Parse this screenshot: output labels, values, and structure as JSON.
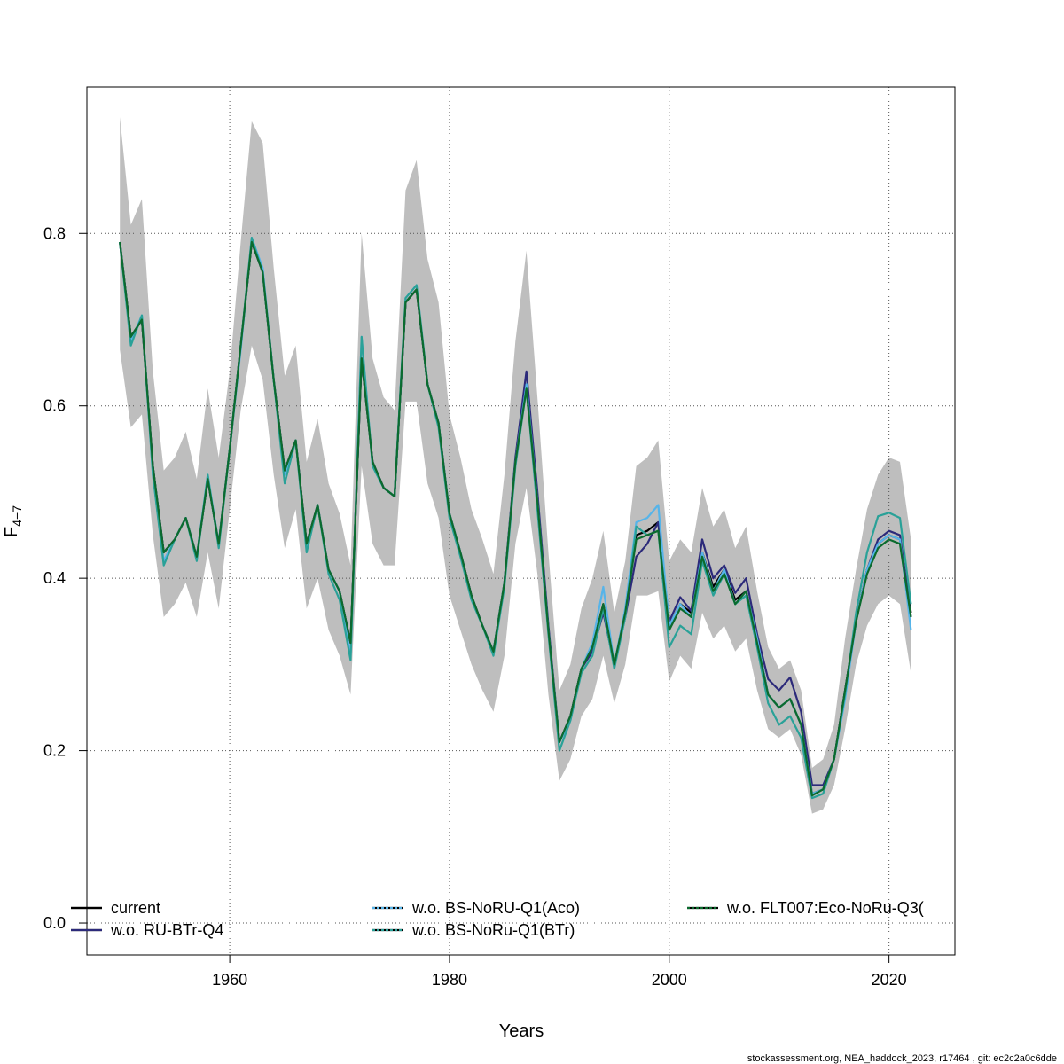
{
  "chart_data": {
    "type": "line",
    "xlabel": "Years",
    "ylabel_main": "F",
    "ylabel_sub": "4−7",
    "xlim": [
      1947,
      2026
    ],
    "ylim": [
      -0.037,
      0.97
    ],
    "x_ticks": [
      1960,
      1980,
      2000,
      2020
    ],
    "y_ticks": [
      0.0,
      0.2,
      0.4,
      0.6,
      0.8
    ],
    "y_tick_labels": [
      "0.0",
      "0.2",
      "0.4",
      "0.6",
      "0.8"
    ],
    "grid": true,
    "legend_position": "bottom",
    "caption": "stockassessment.org, NEA_haddock_2023, r17464 , git: ec2c2a0c6dde",
    "x": [
      1950,
      1951,
      1952,
      1953,
      1954,
      1955,
      1956,
      1957,
      1958,
      1959,
      1960,
      1961,
      1962,
      1963,
      1964,
      1965,
      1966,
      1967,
      1968,
      1969,
      1970,
      1971,
      1972,
      1973,
      1974,
      1975,
      1976,
      1977,
      1978,
      1979,
      1980,
      1981,
      1982,
      1983,
      1984,
      1985,
      1986,
      1987,
      1988,
      1989,
      1990,
      1991,
      1992,
      1993,
      1994,
      1995,
      1996,
      1997,
      1998,
      1999,
      2000,
      2001,
      2002,
      2003,
      2004,
      2005,
      2006,
      2007,
      2008,
      2009,
      2010,
      2011,
      2012,
      2013,
      2014,
      2015,
      2016,
      2017,
      2018,
      2019,
      2020,
      2021,
      2022
    ],
    "confidence_band": {
      "color": "#bebebe",
      "upper": [
        0.935,
        0.81,
        0.84,
        0.64,
        0.525,
        0.54,
        0.57,
        0.515,
        0.62,
        0.54,
        0.64,
        0.79,
        0.93,
        0.905,
        0.76,
        0.635,
        0.67,
        0.535,
        0.585,
        0.51,
        0.475,
        0.415,
        0.8,
        0.655,
        0.61,
        0.595,
        0.85,
        0.885,
        0.77,
        0.72,
        0.59,
        0.54,
        0.48,
        0.445,
        0.405,
        0.52,
        0.675,
        0.78,
        0.61,
        0.43,
        0.27,
        0.3,
        0.365,
        0.4,
        0.455,
        0.36,
        0.42,
        0.53,
        0.54,
        0.56,
        0.42,
        0.445,
        0.43,
        0.505,
        0.46,
        0.48,
        0.435,
        0.46,
        0.385,
        0.32,
        0.295,
        0.305,
        0.27,
        0.18,
        0.19,
        0.23,
        0.33,
        0.41,
        0.48,
        0.52,
        0.54,
        0.535,
        0.445
      ],
      "lower": [
        0.665,
        0.575,
        0.59,
        0.45,
        0.355,
        0.37,
        0.395,
        0.355,
        0.43,
        0.365,
        0.48,
        0.595,
        0.67,
        0.63,
        0.52,
        0.435,
        0.48,
        0.365,
        0.4,
        0.34,
        0.31,
        0.265,
        0.53,
        0.44,
        0.415,
        0.415,
        0.605,
        0.605,
        0.51,
        0.47,
        0.38,
        0.34,
        0.3,
        0.27,
        0.245,
        0.31,
        0.44,
        0.505,
        0.405,
        0.265,
        0.165,
        0.19,
        0.24,
        0.26,
        0.31,
        0.255,
        0.3,
        0.38,
        0.38,
        0.385,
        0.28,
        0.31,
        0.295,
        0.36,
        0.33,
        0.345,
        0.315,
        0.33,
        0.27,
        0.225,
        0.215,
        0.225,
        0.195,
        0.127,
        0.132,
        0.16,
        0.225,
        0.3,
        0.345,
        0.37,
        0.38,
        0.37,
        0.29
      ]
    },
    "legend": [
      {
        "label": "current",
        "color": "#000000",
        "dashed": false
      },
      {
        "label": "w.o. RU-BTr-Q4",
        "color": "#2c2a7a",
        "dashed": false
      },
      {
        "label": "w.o. BS-NoRU-Q1(Aco)",
        "color": "#56b4e9",
        "dashed": true
      },
      {
        "label": "w.o. BS-NoRu-Q1(BTr)",
        "color": "#2aa198",
        "dashed": true
      },
      {
        "label": "w.o. FLT007:Eco-NoRu-Q3(",
        "color": "#0b6b2e",
        "dashed": true
      }
    ],
    "series": [
      {
        "name": "current",
        "color": "#000000",
        "width": 2.2,
        "values": [
          0.79,
          0.68,
          0.7,
          0.53,
          0.43,
          0.445,
          0.47,
          0.425,
          0.515,
          0.44,
          0.55,
          0.67,
          0.79,
          0.755,
          0.63,
          0.525,
          0.56,
          0.44,
          0.485,
          0.41,
          0.385,
          0.325,
          0.655,
          0.535,
          0.505,
          0.495,
          0.72,
          0.735,
          0.625,
          0.58,
          0.475,
          0.43,
          0.38,
          0.345,
          0.315,
          0.395,
          0.535,
          0.625,
          0.49,
          0.34,
          0.21,
          0.24,
          0.295,
          0.32,
          0.37,
          0.3,
          0.36,
          0.45,
          0.455,
          0.465,
          0.345,
          0.37,
          0.36,
          0.43,
          0.39,
          0.41,
          0.375,
          0.385,
          0.33,
          0.265,
          0.25,
          0.26,
          0.23,
          0.15,
          0.155,
          0.19,
          0.27,
          0.35,
          0.41,
          0.44,
          0.45,
          0.445,
          0.36
        ]
      },
      {
        "name": "w.o. RU-BTr-Q4",
        "color": "#2c2a7a",
        "width": 2.2,
        "values": [
          0.79,
          0.68,
          0.7,
          0.53,
          0.43,
          0.445,
          0.47,
          0.425,
          0.515,
          0.44,
          0.55,
          0.67,
          0.79,
          0.755,
          0.63,
          0.525,
          0.56,
          0.44,
          0.485,
          0.41,
          0.385,
          0.325,
          0.655,
          0.535,
          0.505,
          0.495,
          0.72,
          0.735,
          0.625,
          0.58,
          0.475,
          0.43,
          0.38,
          0.345,
          0.315,
          0.395,
          0.54,
          0.64,
          0.5,
          0.345,
          0.21,
          0.24,
          0.295,
          0.315,
          0.36,
          0.3,
          0.355,
          0.425,
          0.44,
          0.465,
          0.35,
          0.378,
          0.362,
          0.445,
          0.4,
          0.415,
          0.383,
          0.4,
          0.335,
          0.283,
          0.27,
          0.285,
          0.245,
          0.16,
          0.16,
          0.19,
          0.27,
          0.35,
          0.41,
          0.445,
          0.455,
          0.45,
          0.355
        ]
      },
      {
        "name": "w.o. BS-NoRU-Q1(Aco)",
        "color": "#56b4e9",
        "width": 2.2,
        "values": [
          0.79,
          0.675,
          0.705,
          0.52,
          0.42,
          0.445,
          0.47,
          0.425,
          0.52,
          0.44,
          0.55,
          0.665,
          0.795,
          0.76,
          0.63,
          0.52,
          0.56,
          0.435,
          0.485,
          0.41,
          0.385,
          0.31,
          0.68,
          0.53,
          0.505,
          0.495,
          0.725,
          0.74,
          0.625,
          0.58,
          0.475,
          0.43,
          0.375,
          0.345,
          0.315,
          0.395,
          0.535,
          0.625,
          0.49,
          0.34,
          0.21,
          0.235,
          0.295,
          0.325,
          0.39,
          0.3,
          0.365,
          0.465,
          0.47,
          0.485,
          0.345,
          0.37,
          0.355,
          0.43,
          0.385,
          0.41,
          0.37,
          0.385,
          0.33,
          0.265,
          0.25,
          0.26,
          0.23,
          0.15,
          0.155,
          0.19,
          0.26,
          0.35,
          0.41,
          0.44,
          0.45,
          0.445,
          0.34
        ]
      },
      {
        "name": "w.o. BS-NoRu-Q1(BTr)",
        "color": "#2aa198",
        "width": 2.2,
        "values": [
          0.79,
          0.67,
          0.705,
          0.52,
          0.415,
          0.445,
          0.47,
          0.42,
          0.52,
          0.435,
          0.55,
          0.67,
          0.795,
          0.755,
          0.63,
          0.51,
          0.56,
          0.43,
          0.485,
          0.405,
          0.375,
          0.305,
          0.68,
          0.53,
          0.505,
          0.495,
          0.725,
          0.74,
          0.625,
          0.575,
          0.47,
          0.425,
          0.375,
          0.345,
          0.31,
          0.39,
          0.53,
          0.62,
          0.48,
          0.335,
          0.2,
          0.235,
          0.29,
          0.31,
          0.365,
          0.295,
          0.355,
          0.46,
          0.45,
          0.455,
          0.32,
          0.345,
          0.335,
          0.42,
          0.38,
          0.405,
          0.37,
          0.38,
          0.32,
          0.255,
          0.23,
          0.24,
          0.215,
          0.145,
          0.15,
          0.19,
          0.265,
          0.36,
          0.43,
          0.472,
          0.476,
          0.47,
          0.37
        ]
      },
      {
        "name": "w.o. FLT007:Eco-NoRu-Q3(",
        "color": "#0b6b2e",
        "width": 2.2,
        "values": [
          0.79,
          0.68,
          0.7,
          0.53,
          0.43,
          0.445,
          0.47,
          0.425,
          0.515,
          0.44,
          0.55,
          0.67,
          0.79,
          0.755,
          0.63,
          0.525,
          0.56,
          0.44,
          0.485,
          0.41,
          0.385,
          0.325,
          0.655,
          0.535,
          0.505,
          0.495,
          0.72,
          0.735,
          0.625,
          0.58,
          0.475,
          0.43,
          0.38,
          0.345,
          0.315,
          0.395,
          0.535,
          0.62,
          0.49,
          0.34,
          0.21,
          0.24,
          0.295,
          0.32,
          0.37,
          0.3,
          0.36,
          0.445,
          0.45,
          0.455,
          0.34,
          0.365,
          0.355,
          0.425,
          0.385,
          0.405,
          0.37,
          0.385,
          0.325,
          0.265,
          0.25,
          0.26,
          0.23,
          0.148,
          0.155,
          0.19,
          0.27,
          0.35,
          0.405,
          0.435,
          0.445,
          0.44,
          0.355
        ]
      }
    ]
  }
}
